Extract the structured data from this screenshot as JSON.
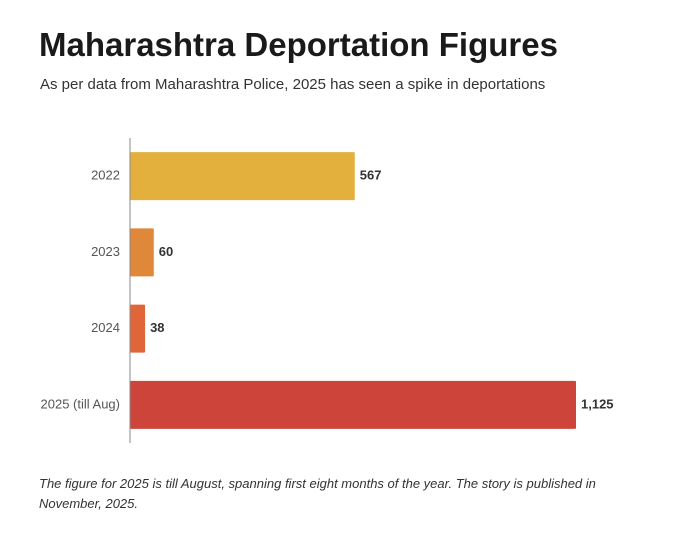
{
  "chart_data": {
    "type": "hbar",
    "title": "Maharashtra Deportation Figures",
    "subtitle": "As per data from Maharashtra Police, 2025 has seen a spike in deportations",
    "categories": [
      "2022",
      "2023",
      "2024",
      "2025 (till Aug)"
    ],
    "values": [
      567,
      60,
      38,
      1125
    ],
    "value_labels": [
      "567",
      "60",
      "38",
      "1,125"
    ],
    "colors": [
      "#e3b03e",
      "#e0883a",
      "#e0663a",
      "#cc443a"
    ],
    "note": "The figure for 2025 is till August, spanning first eight months of the year. The story is published in November, 2025."
  }
}
